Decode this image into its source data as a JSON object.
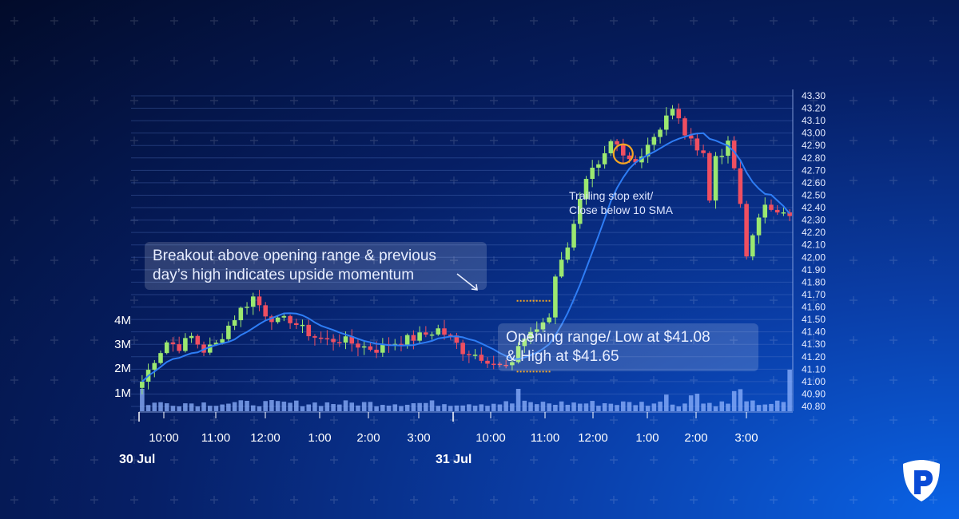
{
  "chart_data": {
    "type": "candlestick",
    "y_axis": {
      "side": "right",
      "range": [
        40.8,
        43.3
      ],
      "ticks": [
        "43.30",
        "43.20",
        "43.10",
        "43.00",
        "42.90",
        "42.80",
        "42.70",
        "42.60",
        "42.50",
        "42.40",
        "42.30",
        "42.20",
        "42.10",
        "42.00",
        "41.90",
        "41.80",
        "41.70",
        "41.60",
        "41.50",
        "41.40",
        "41.30",
        "41.20",
        "41.10",
        "41.00",
        "40.90",
        "40.80"
      ]
    },
    "volume_axis": {
      "side": "left",
      "ticks": [
        "4M",
        "3M",
        "2M",
        "1M"
      ]
    },
    "x_axis": {
      "time_ticks": [
        "10:00",
        "11:00",
        "12:00",
        "1:00",
        "2:00",
        "3:00",
        "10:00",
        "11:00",
        "12:00",
        "1:00",
        "2:00",
        "3:00"
      ],
      "day_labels": [
        "30 Jul",
        "31 Jul"
      ]
    },
    "price_path": [
      [
        0,
        41.0
      ],
      [
        2,
        41.18
      ],
      [
        4,
        41.32
      ],
      [
        6,
        41.28
      ],
      [
        8,
        41.36
      ],
      [
        10,
        41.25
      ],
      [
        12,
        41.3
      ],
      [
        14,
        41.45
      ],
      [
        16,
        41.58
      ],
      [
        18,
        41.68
      ],
      [
        20,
        41.55
      ],
      [
        22,
        41.48
      ],
      [
        24,
        41.5
      ],
      [
        26,
        41.42
      ],
      [
        28,
        41.36
      ],
      [
        30,
        41.33
      ],
      [
        32,
        41.34
      ],
      [
        34,
        41.31
      ],
      [
        36,
        41.28
      ],
      [
        38,
        41.26
      ],
      [
        40,
        41.3
      ],
      [
        42,
        41.33
      ],
      [
        44,
        41.35
      ],
      [
        46,
        41.38
      ],
      [
        48,
        41.42
      ],
      [
        50,
        41.35
      ],
      [
        52,
        41.25
      ],
      [
        54,
        41.22
      ],
      [
        56,
        41.18
      ],
      [
        58,
        41.12
      ],
      [
        60,
        41.12
      ],
      [
        61,
        41.3
      ],
      [
        63,
        41.4
      ],
      [
        65,
        41.45
      ],
      [
        66,
        41.52
      ],
      [
        67,
        41.85
      ],
      [
        68,
        42.0
      ],
      [
        69,
        42.1
      ],
      [
        70,
        42.25
      ],
      [
        71,
        42.5
      ],
      [
        72,
        42.65
      ],
      [
        73,
        42.7
      ],
      [
        74,
        42.72
      ],
      [
        75,
        42.8
      ],
      [
        76,
        42.9
      ],
      [
        77,
        42.88
      ],
      [
        78,
        42.8
      ],
      [
        79,
        42.78
      ],
      [
        80,
        42.76
      ],
      [
        81,
        42.85
      ],
      [
        82,
        42.92
      ],
      [
        83,
        42.98
      ],
      [
        84,
        43.05
      ],
      [
        85,
        43.15
      ],
      [
        86,
        43.18
      ],
      [
        87,
        43.1
      ],
      [
        88,
        43.0
      ],
      [
        89,
        42.92
      ],
      [
        90,
        42.9
      ],
      [
        91,
        42.85
      ],
      [
        92,
        42.45
      ],
      [
        93,
        42.82
      ],
      [
        94,
        42.85
      ],
      [
        95,
        42.9
      ],
      [
        96,
        42.72
      ],
      [
        97,
        42.4
      ],
      [
        98,
        42.0
      ],
      [
        99,
        42.18
      ],
      [
        100,
        42.35
      ],
      [
        101,
        42.4
      ],
      [
        102,
        42.35
      ],
      [
        103,
        42.38
      ],
      [
        104,
        42.4
      ],
      [
        105,
        42.36
      ]
    ],
    "sma_label": "10 SMA",
    "colors": {
      "up_candle": "#9be870",
      "down_candle": "#ef4f61",
      "sma_line": "#2e7df5",
      "volume": "#8fb3ff",
      "highlight_circle": "#f6a623",
      "range_marker": "#f6a623",
      "grid": "#5a7bc8"
    },
    "opening_range": {
      "low": 41.08,
      "high": 41.65
    },
    "annotations": [
      {
        "id": "breakout",
        "lines": [
          "Breakout above opening range & previous",
          "day’s high indicates upside momentum"
        ]
      },
      {
        "id": "opening-range",
        "lines": [
          "Opening range/ Low at $41.08",
          "& High at $41.65"
        ]
      },
      {
        "id": "trailing-stop",
        "lines": [
          "Trailing stop exit/",
          "Close below 10 SMA"
        ]
      }
    ]
  },
  "brand": {
    "logo_icon": "p-shield-logo-icon"
  }
}
